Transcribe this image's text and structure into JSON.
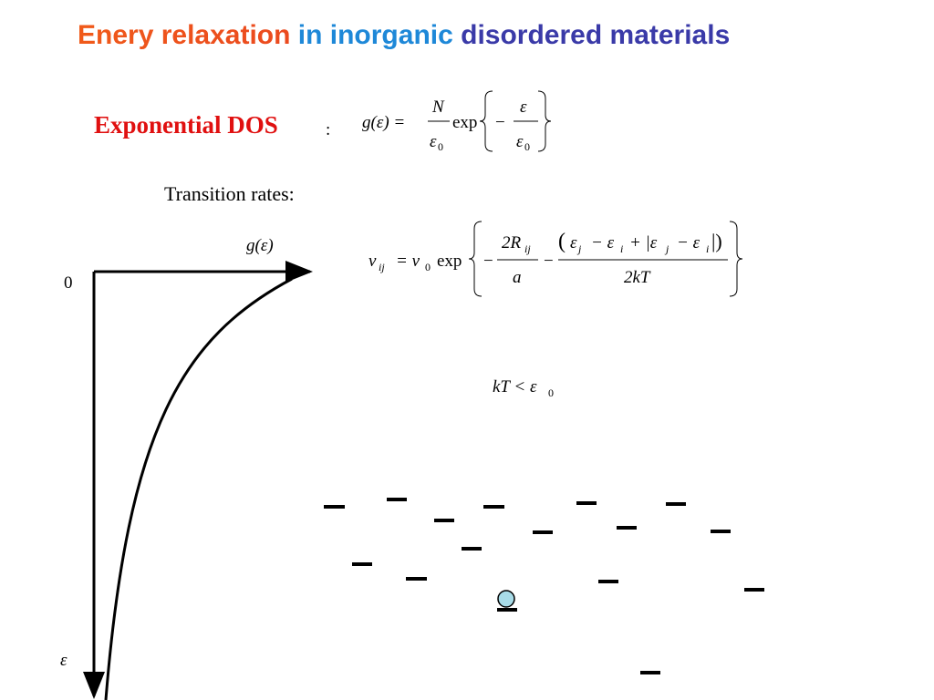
{
  "title": {
    "part1": "Enery relaxation",
    "part2": "in inorganic",
    "part3": "disordered materials"
  },
  "dos_label": {
    "text": "Exponential DOS",
    "colon": ":"
  },
  "dos_formula": {
    "lhs": "g(ε) =",
    "numerator": "N",
    "denominator": "ε",
    "denominator_sub": "0",
    "exp": "exp",
    "minus": "−",
    "inner_numerator": "ε",
    "inner_denominator": "ε",
    "inner_denominator_sub": "0"
  },
  "rates_label": "Transition rates:",
  "rate_formula": {
    "nu": "ν",
    "nu_sub": "ij",
    "equals_nu": "= ν",
    "nu0_sub": "0",
    "exp": "exp",
    "minus1": "−",
    "two_r": "2R",
    "r_sub": "ij",
    "a": "a",
    "minus2": "−",
    "paren_open": "(",
    "eps_j": "ε",
    "j1": "j",
    "minus_eps_i": "− ε",
    "i1": "i",
    "plus_bar": "+ |ε",
    "j2": "j",
    "minus_eps_i2": "− ε",
    "i2": "i",
    "bar_close": "|)",
    "two_kt": "2kT"
  },
  "condition": {
    "text": "kT < ε",
    "sub": "0"
  },
  "diagram": {
    "dos_axis_label": "g(ε)",
    "origin_label": "0",
    "energy_axis_label": "ε"
  }
}
